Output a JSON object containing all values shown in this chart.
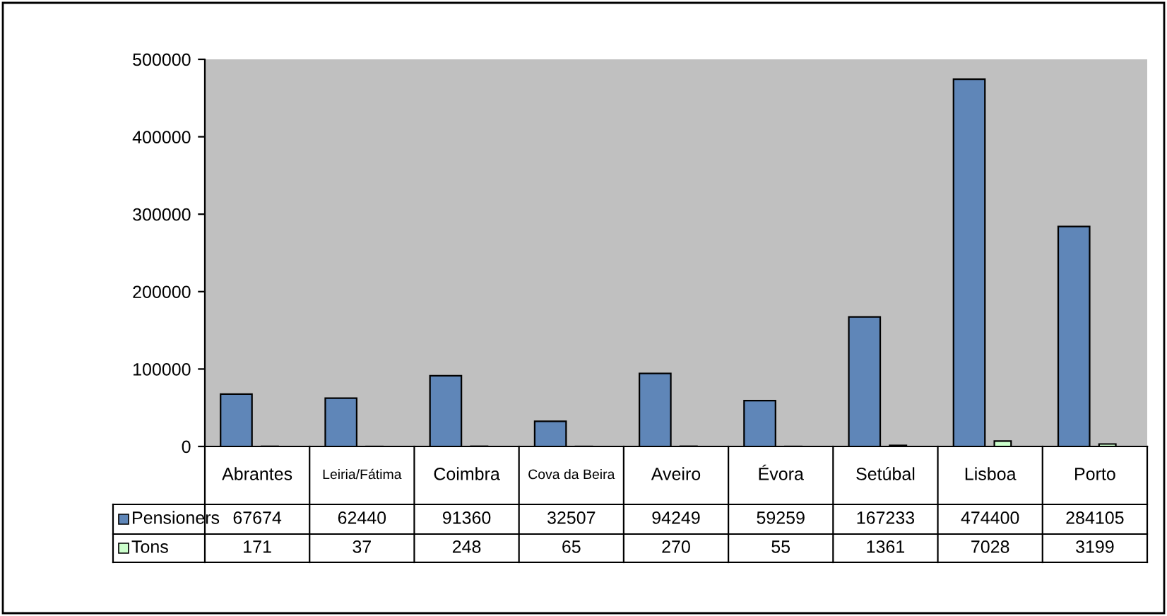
{
  "chart_data": {
    "type": "bar",
    "categories": [
      "Abrantes",
      "Leiria/Fátima",
      "Coimbra",
      "Cova da Beira",
      "Aveiro",
      "Évora",
      "Setúbal",
      "Lisboa",
      "Porto"
    ],
    "series": [
      {
        "name": "Pensioners",
        "color": "#5f86b8",
        "values": [
          67674,
          62440,
          91360,
          32507,
          94249,
          59259,
          167233,
          474400,
          284105
        ]
      },
      {
        "name": "Tons",
        "color": "#ccffcc",
        "values": [
          171,
          37,
          248,
          65,
          270,
          55,
          1361,
          7028,
          3199
        ]
      }
    ],
    "ylim": [
      0,
      500000
    ],
    "yticks": [
      0,
      100000,
      200000,
      300000,
      400000,
      500000
    ],
    "grid": false,
    "data_labels": true,
    "legend": "bottom left"
  }
}
